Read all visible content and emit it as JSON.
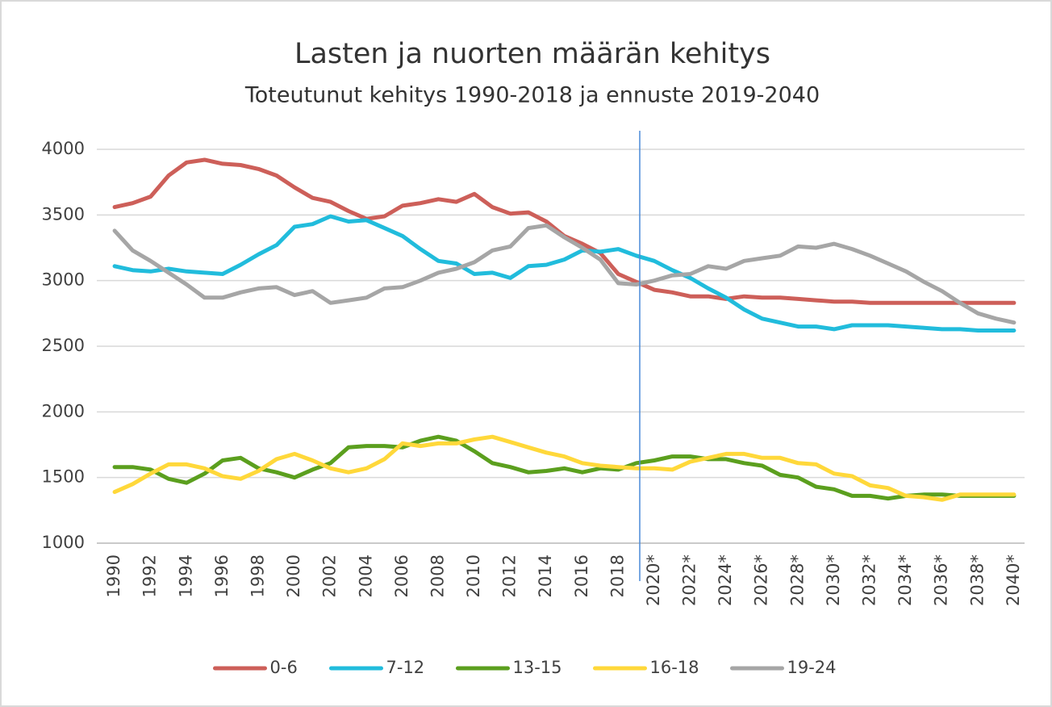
{
  "chart_data": {
    "type": "line",
    "title": "Lasten ja nuorten määrän kehitys",
    "subtitle": "Toteutunut kehitys 1990-2018 ja ennuste 2019-2040",
    "categories": [
      "1990",
      null,
      "1992",
      null,
      "1994",
      null,
      "1996",
      null,
      "1998",
      null,
      "2000",
      null,
      "2002",
      null,
      "2004",
      null,
      "2006",
      null,
      "2008",
      null,
      "2010",
      null,
      "2012",
      null,
      "2014",
      null,
      "2016",
      null,
      "2018",
      null,
      "2020*",
      null,
      "2022*",
      null,
      "2024*",
      null,
      "2026*",
      null,
      "2028*",
      null,
      "2030*",
      null,
      "2032*",
      null,
      "2034*",
      null,
      "2036*",
      null,
      "2038*",
      null,
      "2040*"
    ],
    "series": [
      {
        "name": "0-6",
        "color": "#cd5f59",
        "values": [
          3560,
          3590,
          3640,
          3800,
          3900,
          3920,
          3890,
          3880,
          3850,
          3800,
          3710,
          3630,
          3600,
          3530,
          3470,
          3490,
          3570,
          3590,
          3620,
          3600,
          3660,
          3560,
          3510,
          3520,
          3450,
          3340,
          3280,
          3210,
          3050,
          2990,
          2930,
          2910,
          2880,
          2880,
          2860,
          2880,
          2870,
          2870,
          2860,
          2850,
          2840,
          2840,
          2830,
          2830,
          2830,
          2830,
          2830,
          2830,
          2830,
          2830,
          2830
        ]
      },
      {
        "name": "7-12",
        "color": "#21bcdc",
        "values": [
          3110,
          3080,
          3070,
          3090,
          3070,
          3060,
          3050,
          3120,
          3200,
          3270,
          3410,
          3430,
          3490,
          3450,
          3460,
          3400,
          3340,
          3240,
          3150,
          3130,
          3050,
          3060,
          3020,
          3110,
          3120,
          3160,
          3230,
          3220,
          3240,
          3190,
          3150,
          3080,
          3020,
          2940,
          2870,
          2780,
          2710,
          2680,
          2650,
          2650,
          2630,
          2660,
          2660,
          2660,
          2650,
          2640,
          2630,
          2630,
          2620,
          2620,
          2620
        ]
      },
      {
        "name": "13-15",
        "color": "#5b9f1e",
        "values": [
          1580,
          1580,
          1560,
          1490,
          1460,
          1530,
          1630,
          1650,
          1570,
          1540,
          1500,
          1560,
          1610,
          1730,
          1740,
          1740,
          1730,
          1780,
          1810,
          1780,
          1700,
          1610,
          1580,
          1540,
          1550,
          1570,
          1540,
          1570,
          1560,
          1610,
          1630,
          1660,
          1660,
          1640,
          1640,
          1610,
          1590,
          1520,
          1500,
          1430,
          1410,
          1360,
          1360,
          1340,
          1360,
          1370,
          1370,
          1360,
          1360,
          1360,
          1360
        ]
      },
      {
        "name": "16-18",
        "color": "#ffd83a",
        "values": [
          1390,
          1450,
          1530,
          1600,
          1600,
          1570,
          1510,
          1490,
          1550,
          1640,
          1680,
          1630,
          1570,
          1540,
          1570,
          1640,
          1760,
          1740,
          1760,
          1760,
          1790,
          1810,
          1770,
          1730,
          1690,
          1660,
          1610,
          1590,
          1580,
          1570,
          1570,
          1560,
          1620,
          1650,
          1680,
          1680,
          1650,
          1650,
          1610,
          1600,
          1530,
          1510,
          1440,
          1420,
          1360,
          1350,
          1330,
          1370,
          1370,
          1370,
          1370
        ]
      },
      {
        "name": "19-24",
        "color": "#a6a6a6",
        "values": [
          3380,
          3230,
          3150,
          3060,
          2970,
          2870,
          2870,
          2910,
          2940,
          2950,
          2890,
          2920,
          2830,
          2850,
          2870,
          2940,
          2950,
          3000,
          3060,
          3090,
          3140,
          3230,
          3260,
          3400,
          3420,
          3330,
          3250,
          3160,
          2980,
          2970,
          3000,
          3040,
          3050,
          3110,
          3090,
          3150,
          3170,
          3190,
          3260,
          3250,
          3280,
          3240,
          3190,
          3130,
          3070,
          2990,
          2920,
          2830,
          2750,
          2710,
          2680
        ]
      }
    ],
    "ylim": [
      1000,
      4000
    ],
    "yticks": [
      1000,
      1500,
      2000,
      2500,
      3000,
      3500,
      4000
    ],
    "grid": true,
    "legend": "bottom"
  }
}
